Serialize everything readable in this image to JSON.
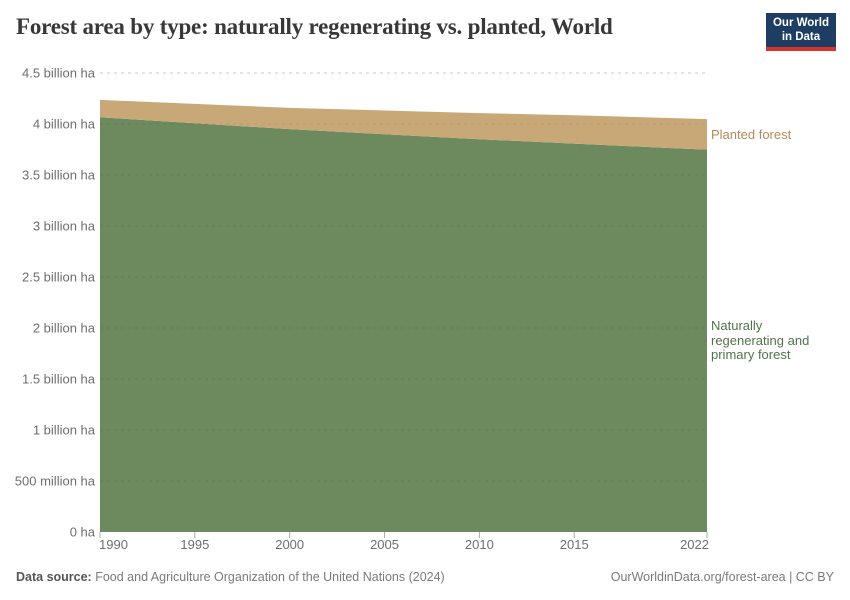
{
  "title": "Forest area by type: naturally regenerating vs. planted, World",
  "logo": {
    "line1": "Our World",
    "line2": "in Data",
    "background": "#1d3d63",
    "bar_color": "#d7332e"
  },
  "chart_data": {
    "type": "area",
    "stacked": true,
    "title": "Forest area by type: naturally regenerating vs. planted, World",
    "unit": "billion ha",
    "x": [
      1990,
      1995,
      2000,
      2005,
      2010,
      2015,
      2020,
      2022
    ],
    "series": [
      {
        "name": "Naturally regenerating and primary forest",
        "label": "Naturally\nregenerating and\nprimary forest",
        "color": "#6c8a5d",
        "label_color": "#54724d",
        "values": [
          4.066,
          4.008,
          3.95,
          3.9,
          3.851,
          3.808,
          3.765,
          3.749
        ]
      },
      {
        "name": "Planted forest",
        "label": "Planted forest",
        "color": "#c9a878",
        "label_color": "#b9885a",
        "values": [
          0.17,
          0.189,
          0.208,
          0.232,
          0.256,
          0.278,
          0.294,
          0.299
        ]
      }
    ],
    "xlim": [
      1990,
      2022
    ],
    "ylim": [
      0,
      4.5
    ],
    "xticks": [
      1990,
      1995,
      2000,
      2005,
      2010,
      2015,
      2022
    ],
    "yticks": [
      {
        "v": 0,
        "label": "0 ha"
      },
      {
        "v": 0.5,
        "label": "500 million ha"
      },
      {
        "v": 1,
        "label": "1 billion ha"
      },
      {
        "v": 1.5,
        "label": "1.5 billion ha"
      },
      {
        "v": 2,
        "label": "2 billion ha"
      },
      {
        "v": 2.5,
        "label": "2.5 billion ha"
      },
      {
        "v": 3,
        "label": "3 billion ha"
      },
      {
        "v": 3.5,
        "label": "3.5 billion ha"
      },
      {
        "v": 4,
        "label": "4 billion ha"
      },
      {
        "v": 4.5,
        "label": "4.5 billion ha"
      }
    ],
    "grid": true,
    "gridline_color": "#dcdcdc",
    "axis_text_color": "#6e6e6e",
    "legend_position": "right-of-plot"
  },
  "footer": {
    "source_label": "Data source:",
    "source_text": " Food and Agriculture Organization of the United Nations (2024)",
    "link": "OurWorldinData.org/forest-area | CC BY"
  }
}
